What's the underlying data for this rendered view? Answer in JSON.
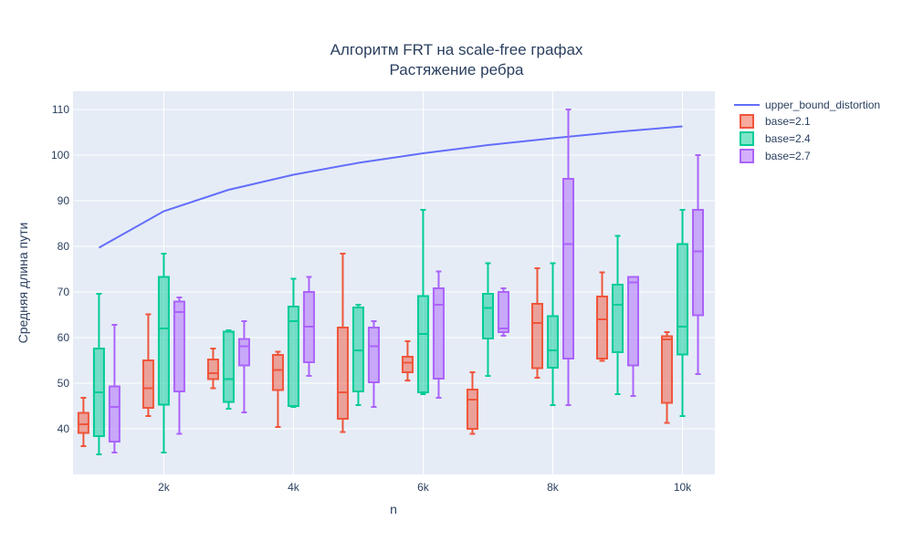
{
  "chart_data": {
    "type": "box",
    "title": "Алгоритм FRT на scale-free графах",
    "subtitle": "Растяжение ребра",
    "xlabel": "n",
    "ylabel": "Средняя длина пути",
    "xlim": [
      600,
      10500
    ],
    "ylim": [
      30,
      114
    ],
    "x_ticks": [
      2000,
      4000,
      6000,
      8000,
      10000
    ],
    "x_tick_labels": [
      "2k",
      "4k",
      "6k",
      "8k",
      "10k"
    ],
    "y_ticks": [
      40,
      50,
      60,
      70,
      80,
      90,
      100,
      110
    ],
    "y_tick_labels": [
      "40",
      "50",
      "60",
      "70",
      "80",
      "90",
      "100",
      "110"
    ],
    "grid": true,
    "legend_position": "top-right",
    "line_series": {
      "name": "upper_bound_distortion",
      "color": "#636efa",
      "x": [
        1000,
        2000,
        3000,
        4000,
        5000,
        6000,
        7000,
        8000,
        9000,
        10000
      ],
      "y": [
        79.7,
        87.7,
        92.4,
        95.7,
        98.3,
        100.4,
        102.2,
        103.7,
        105.1,
        106.3
      ]
    },
    "box_series": [
      {
        "name": "base=2.1",
        "color": "#ef553b",
        "fill": "rgba(239,85,59,0.5)",
        "x": [
          1000,
          2000,
          3000,
          4000,
          5000,
          6000,
          7000,
          8000,
          9000,
          10000
        ],
        "boxes": [
          {
            "min": 36.2,
            "q1": 39.1,
            "median": 41.0,
            "q3": 43.5,
            "max": 46.8
          },
          {
            "min": 42.8,
            "q1": 44.6,
            "median": 48.9,
            "q3": 55.0,
            "max": 65.1
          },
          {
            "min": 48.9,
            "q1": 50.9,
            "median": 52.2,
            "q3": 55.2,
            "max": 57.6
          },
          {
            "min": 40.4,
            "q1": 48.5,
            "median": 52.9,
            "q3": 56.2,
            "max": 56.9
          },
          {
            "min": 39.3,
            "q1": 42.2,
            "median": 48.0,
            "q3": 62.2,
            "max": 78.4
          },
          {
            "min": 50.6,
            "q1": 52.4,
            "median": 54.5,
            "q3": 55.8,
            "max": 59.2
          },
          {
            "min": 38.9,
            "q1": 40.0,
            "median": 46.4,
            "q3": 48.6,
            "max": 52.4
          },
          {
            "min": 51.2,
            "q1": 53.3,
            "median": 63.2,
            "q3": 67.4,
            "max": 75.2
          },
          {
            "min": 54.9,
            "q1": 55.4,
            "median": 64.0,
            "q3": 69.0,
            "max": 74.3
          },
          {
            "min": 41.3,
            "q1": 45.7,
            "median": 59.6,
            "q3": 60.3,
            "max": 61.2
          }
        ]
      },
      {
        "name": "base=2.4",
        "color": "#00cc96",
        "fill": "rgba(0,204,150,0.5)",
        "x": [
          1000,
          2000,
          3000,
          4000,
          5000,
          6000,
          7000,
          8000,
          9000,
          10000
        ],
        "boxes": [
          {
            "min": 34.4,
            "q1": 38.4,
            "median": 48.0,
            "q3": 57.6,
            "max": 69.6
          },
          {
            "min": 34.8,
            "q1": 45.3,
            "median": 62.0,
            "q3": 73.3,
            "max": 78.4
          },
          {
            "min": 44.4,
            "q1": 45.9,
            "median": 50.9,
            "q3": 61.3,
            "max": 61.6
          },
          {
            "min": 44.8,
            "q1": 45.0,
            "median": 63.6,
            "q3": 66.8,
            "max": 72.9
          },
          {
            "min": 45.2,
            "q1": 48.2,
            "median": 57.2,
            "q3": 66.6,
            "max": 67.2
          },
          {
            "min": 47.6,
            "q1": 48.0,
            "median": 60.8,
            "q3": 69.1,
            "max": 88.0
          },
          {
            "min": 51.6,
            "q1": 59.8,
            "median": 66.5,
            "q3": 69.6,
            "max": 76.3
          },
          {
            "min": 45.2,
            "q1": 53.4,
            "median": 57.2,
            "q3": 64.7,
            "max": 76.3
          },
          {
            "min": 47.6,
            "q1": 56.8,
            "median": 67.2,
            "q3": 71.6,
            "max": 82.3
          },
          {
            "min": 42.8,
            "q1": 56.3,
            "median": 62.4,
            "q3": 80.5,
            "max": 88.0
          }
        ]
      },
      {
        "name": "base=2.7",
        "color": "#ab63fa",
        "fill": "rgba(171,99,250,0.5)",
        "x": [
          1000,
          2000,
          3000,
          4000,
          5000,
          6000,
          7000,
          8000,
          9000,
          10000
        ],
        "boxes": [
          {
            "min": 34.8,
            "q1": 37.2,
            "median": 44.8,
            "q3": 49.3,
            "max": 62.8
          },
          {
            "min": 38.9,
            "q1": 48.2,
            "median": 65.6,
            "q3": 67.9,
            "max": 68.8
          },
          {
            "min": 43.6,
            "q1": 53.9,
            "median": 58.1,
            "q3": 59.7,
            "max": 63.6
          },
          {
            "min": 51.6,
            "q1": 54.6,
            "median": 62.4,
            "q3": 70.0,
            "max": 73.3
          },
          {
            "min": 44.8,
            "q1": 50.2,
            "median": 58.1,
            "q3": 62.2,
            "max": 63.6
          },
          {
            "min": 46.8,
            "q1": 51.0,
            "median": 67.2,
            "q3": 70.8,
            "max": 74.5
          },
          {
            "min": 60.4,
            "q1": 61.2,
            "median": 62.0,
            "q3": 70.0,
            "max": 70.8
          },
          {
            "min": 45.2,
            "q1": 55.4,
            "median": 80.5,
            "q3": 94.8,
            "max": 110.0
          },
          {
            "min": 47.2,
            "q1": 53.9,
            "median": 72.1,
            "q3": 73.3,
            "max": 73.3
          },
          {
            "min": 52.0,
            "q1": 64.9,
            "median": 78.9,
            "q3": 88.0,
            "max": 100.0
          }
        ]
      }
    ]
  }
}
